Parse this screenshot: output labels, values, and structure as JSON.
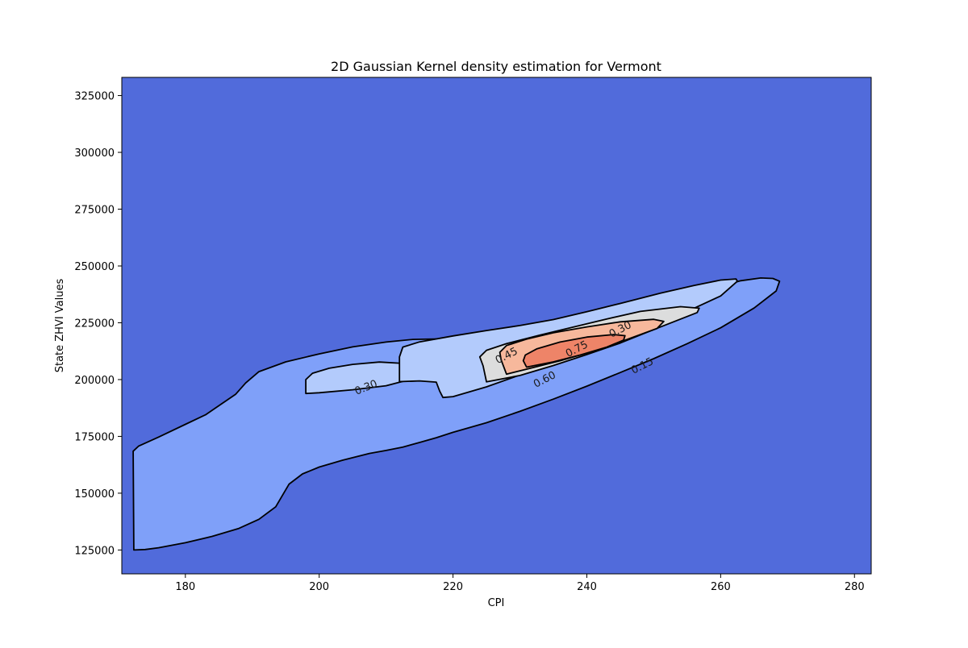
{
  "chart_data": {
    "type": "contour",
    "title": "2D Gaussian Kernel density estimation for Vermont",
    "xlabel": "CPI",
    "ylabel": "State ZHVI Values",
    "xlim": [
      170.5,
      282.5
    ],
    "ylim": [
      114500,
      333000
    ],
    "xticks": [
      180,
      200,
      220,
      240,
      260,
      280
    ],
    "yticks": [
      125000,
      150000,
      175000,
      200000,
      225000,
      250000,
      275000,
      300000,
      325000
    ],
    "colormap": "coolwarm",
    "background_color": "#516bdb",
    "contour_levels": [
      0.15,
      0.3,
      0.45,
      0.6,
      0.75
    ],
    "level_fill_colors": [
      "#7fa0f9",
      "#b3cbfc",
      "#dcdddd",
      "#f7b89c",
      "#ee8468"
    ],
    "contours": [
      {
        "level": 0.15,
        "fill_color": "#7fa0f9",
        "points": [
          [
            172.3,
            125000
          ],
          [
            174,
            125200
          ],
          [
            176,
            126000
          ],
          [
            180,
            128200
          ],
          [
            184,
            131000
          ],
          [
            188,
            134500
          ],
          [
            191,
            138500
          ],
          [
            193.5,
            144000
          ],
          [
            194.5,
            149000
          ],
          [
            195.5,
            154000
          ],
          [
            197.5,
            158500
          ],
          [
            200,
            161500
          ],
          [
            203.5,
            164500
          ],
          [
            207.5,
            167500
          ],
          [
            210,
            168800
          ],
          [
            212.5,
            170300
          ],
          [
            215,
            172300
          ],
          [
            217.5,
            174400
          ],
          [
            220,
            176800
          ],
          [
            225,
            181000
          ],
          [
            230,
            186000
          ],
          [
            235,
            191400
          ],
          [
            240,
            197100
          ],
          [
            245,
            203100
          ],
          [
            250,
            209200
          ],
          [
            255,
            215800
          ],
          [
            260,
            222800
          ],
          [
            265,
            231500
          ],
          [
            268.3,
            239000
          ],
          [
            268.8,
            243300
          ],
          [
            267.8,
            244500
          ],
          [
            266,
            244700
          ],
          [
            263,
            243500
          ],
          [
            260,
            241000
          ],
          [
            256,
            237300
          ],
          [
            250,
            232000
          ],
          [
            245,
            227600
          ],
          [
            240,
            223500
          ],
          [
            235,
            219600
          ],
          [
            230,
            216500
          ],
          [
            226,
            214900
          ],
          [
            224,
            214400
          ],
          [
            222,
            215200
          ],
          [
            220,
            216800
          ],
          [
            218,
            217900
          ],
          [
            214,
            217700
          ],
          [
            210,
            216500
          ],
          [
            205,
            214400
          ],
          [
            200,
            211300
          ],
          [
            195,
            207800
          ],
          [
            191,
            203500
          ],
          [
            189,
            198500
          ],
          [
            187.5,
            193500
          ],
          [
            185,
            188500
          ],
          [
            183,
            184500
          ],
          [
            180,
            180300
          ],
          [
            176,
            174700
          ],
          [
            173,
            170700
          ],
          [
            172.2,
            168500
          ]
        ]
      },
      {
        "level": 0.3,
        "fill_color": "#b3cbfc",
        "points": [
          [
            198,
            193900
          ],
          [
            200,
            194200
          ],
          [
            205,
            195500
          ],
          [
            210,
            197300
          ],
          [
            213.5,
            200000
          ],
          [
            215,
            203300
          ],
          [
            214.7,
            205800
          ],
          [
            212.5,
            207100
          ],
          [
            209,
            207700
          ],
          [
            205,
            206700
          ],
          [
            201.5,
            205000
          ],
          [
            199,
            202800
          ],
          [
            198,
            200000
          ]
        ]
      },
      {
        "level": 0.3,
        "fill_color": "#b3cbfc",
        "points": [
          [
            212,
            199100
          ],
          [
            215,
            199400
          ],
          [
            217.5,
            198900
          ],
          [
            218,
            195000
          ],
          [
            218.5,
            192100
          ],
          [
            220,
            192500
          ],
          [
            225,
            196800
          ],
          [
            230,
            202000
          ],
          [
            235,
            206900
          ],
          [
            240,
            212200
          ],
          [
            245,
            217700
          ],
          [
            250,
            223600
          ],
          [
            255,
            230000
          ],
          [
            260,
            236800
          ],
          [
            262.5,
            243300
          ],
          [
            262.3,
            244300
          ],
          [
            260,
            243800
          ],
          [
            256,
            241400
          ],
          [
            251,
            238000
          ],
          [
            245,
            233500
          ],
          [
            240,
            229900
          ],
          [
            235,
            226400
          ],
          [
            230,
            223800
          ],
          [
            225,
            221600
          ],
          [
            220,
            219200
          ],
          [
            215,
            216600
          ],
          [
            212.5,
            214300
          ],
          [
            212,
            210000
          ]
        ]
      },
      {
        "level": 0.45,
        "fill_color": "#dcdddd",
        "points": [
          [
            225,
            199000
          ],
          [
            230,
            201800
          ],
          [
            235,
            206200
          ],
          [
            240,
            211000
          ],
          [
            245,
            216100
          ],
          [
            250,
            222000
          ],
          [
            256.5,
            229500
          ],
          [
            256.8,
            231400
          ],
          [
            254,
            232100
          ],
          [
            248,
            230000
          ],
          [
            243,
            226700
          ],
          [
            238,
            223100
          ],
          [
            233,
            219600
          ],
          [
            228,
            215800
          ],
          [
            225,
            212900
          ],
          [
            224,
            210000
          ],
          [
            224.5,
            206000
          ]
        ]
      },
      {
        "level": 0.6,
        "fill_color": "#f7b89c",
        "points": [
          [
            228,
            202400
          ],
          [
            232,
            205300
          ],
          [
            236,
            208300
          ],
          [
            240,
            211700
          ],
          [
            245,
            216600
          ],
          [
            250.5,
            222500
          ],
          [
            251.5,
            225600
          ],
          [
            250,
            226500
          ],
          [
            245,
            225400
          ],
          [
            240,
            223200
          ],
          [
            235,
            220600
          ],
          [
            231,
            217800
          ],
          [
            228,
            215000
          ],
          [
            227,
            212000
          ],
          [
            227.2,
            208600
          ]
        ]
      },
      {
        "level": 0.75,
        "fill_color": "#ee8468",
        "points": [
          [
            231,
            205500
          ],
          [
            235,
            207800
          ],
          [
            239,
            210800
          ],
          [
            243,
            214300
          ],
          [
            245.5,
            217400
          ],
          [
            245.7,
            219300
          ],
          [
            244,
            219800
          ],
          [
            240,
            218700
          ],
          [
            236,
            216500
          ],
          [
            232.5,
            213500
          ],
          [
            230.8,
            210800
          ],
          [
            230.5,
            208300
          ]
        ]
      }
    ],
    "labels": [
      {
        "text": "0.15",
        "x": 248.3,
        "y": 206000,
        "angle": -27
      },
      {
        "text": "0.30",
        "x": 245,
        "y": 222000,
        "angle": -27
      },
      {
        "text": "0.30",
        "x": 207,
        "y": 196500,
        "angle": -22
      },
      {
        "text": "0.45",
        "x": 228,
        "y": 210500,
        "angle": -27
      },
      {
        "text": "0.60",
        "x": 233.7,
        "y": 200000,
        "angle": -27
      },
      {
        "text": "0.75",
        "x": 238.5,
        "y": 213400,
        "angle": -27
      }
    ],
    "grid": false,
    "legend": "none"
  }
}
